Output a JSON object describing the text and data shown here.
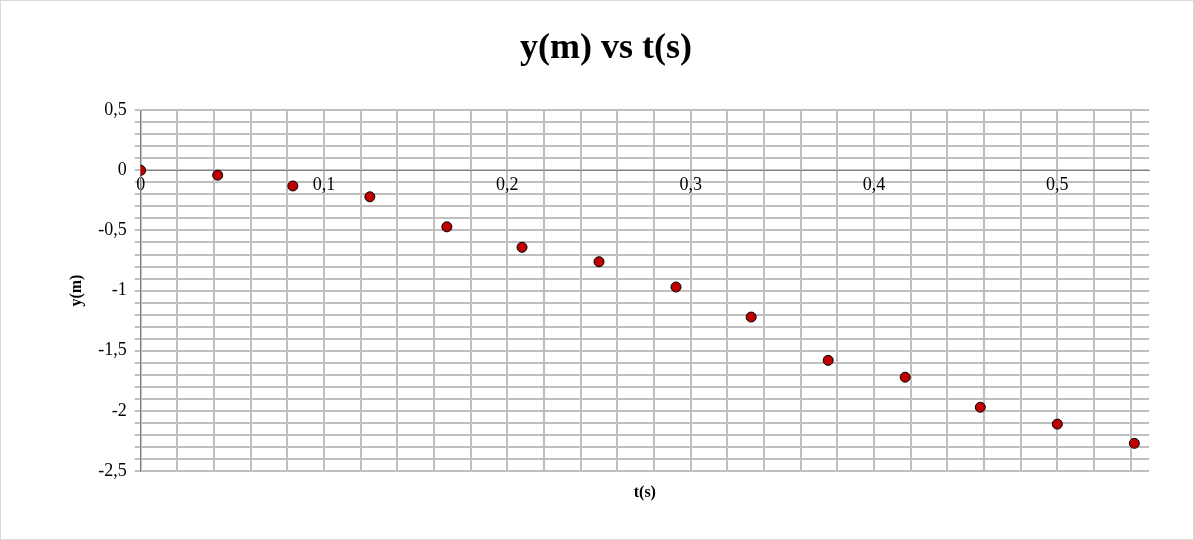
{
  "chart_data": {
    "type": "scatter",
    "title": "y(m) vs t(s)",
    "xlabel": "t(s)",
    "ylabel": "y(m)",
    "x": [
      0,
      0.042,
      0.083,
      0.125,
      0.167,
      0.208,
      0.25,
      0.292,
      0.333,
      0.375,
      0.417,
      0.458,
      0.5,
      0.542
    ],
    "series": [
      {
        "color": "#c00000",
        "values": [
          0,
          -0.04,
          -0.13,
          -0.22,
          -0.47,
          -0.64,
          -0.76,
          -0.97,
          -1.22,
          -1.58,
          -1.72,
          -1.97,
          -2.11,
          -2.27
        ]
      }
    ],
    "xlim": [
      0,
      0.55
    ],
    "xticks": [
      {
        "value": 0,
        "label": "0"
      },
      {
        "value": 0.02,
        "label": null
      },
      {
        "value": 0.04,
        "label": null
      },
      {
        "value": 0.06,
        "label": null
      },
      {
        "value": 0.08,
        "label": null
      },
      {
        "value": 0.1,
        "label": "0,1"
      },
      {
        "value": 0.12,
        "label": null
      },
      {
        "value": 0.14,
        "label": null
      },
      {
        "value": 0.16,
        "label": null
      },
      {
        "value": 0.18,
        "label": null
      },
      {
        "value": 0.2,
        "label": "0,2"
      },
      {
        "value": 0.22,
        "label": null
      },
      {
        "value": 0.24,
        "label": null
      },
      {
        "value": 0.26,
        "label": null
      },
      {
        "value": 0.28,
        "label": null
      },
      {
        "value": 0.3,
        "label": "0,3"
      },
      {
        "value": 0.32,
        "label": null
      },
      {
        "value": 0.34,
        "label": null
      },
      {
        "value": 0.36,
        "label": null
      },
      {
        "value": 0.38,
        "label": null
      },
      {
        "value": 0.4,
        "label": "0,4"
      },
      {
        "value": 0.42,
        "label": null
      },
      {
        "value": 0.44,
        "label": null
      },
      {
        "value": 0.46,
        "label": null
      },
      {
        "value": 0.48,
        "label": null
      },
      {
        "value": 0.5,
        "label": "0,5"
      },
      {
        "value": 0.52,
        "label": null
      },
      {
        "value": 0.54,
        "label": null
      }
    ],
    "ylim": [
      -2.5,
      0.5
    ],
    "yticks": [
      {
        "value": 0.5,
        "label": "0,5"
      },
      {
        "value": 0.4,
        "label": null
      },
      {
        "value": 0.3,
        "label": null
      },
      {
        "value": 0.2,
        "label": null
      },
      {
        "value": 0.1,
        "label": null
      },
      {
        "value": 0,
        "label": "0"
      },
      {
        "value": -0.1,
        "label": null
      },
      {
        "value": -0.2,
        "label": null
      },
      {
        "value": -0.3,
        "label": null
      },
      {
        "value": -0.4,
        "label": null
      },
      {
        "value": -0.5,
        "label": "-0,5"
      },
      {
        "value": -0.6,
        "label": null
      },
      {
        "value": -0.7,
        "label": null
      },
      {
        "value": -0.8,
        "label": null
      },
      {
        "value": -0.9,
        "label": null
      },
      {
        "value": -1,
        "label": "-1"
      },
      {
        "value": -1.1,
        "label": null
      },
      {
        "value": -1.2,
        "label": null
      },
      {
        "value": -1.3,
        "label": null
      },
      {
        "value": -1.4,
        "label": null
      },
      {
        "value": -1.5,
        "label": "-1,5"
      },
      {
        "value": -1.6,
        "label": null
      },
      {
        "value": -1.7,
        "label": null
      },
      {
        "value": -1.8,
        "label": null
      },
      {
        "value": -1.9,
        "label": null
      },
      {
        "value": -2,
        "label": "-2"
      },
      {
        "value": -2.1,
        "label": null
      },
      {
        "value": -2.2,
        "label": null
      },
      {
        "value": -2.3,
        "label": null
      },
      {
        "value": -2.4,
        "label": null
      },
      {
        "value": -2.5,
        "label": "-2,5"
      }
    ],
    "grid": true,
    "marker": "circle",
    "legend": false
  }
}
